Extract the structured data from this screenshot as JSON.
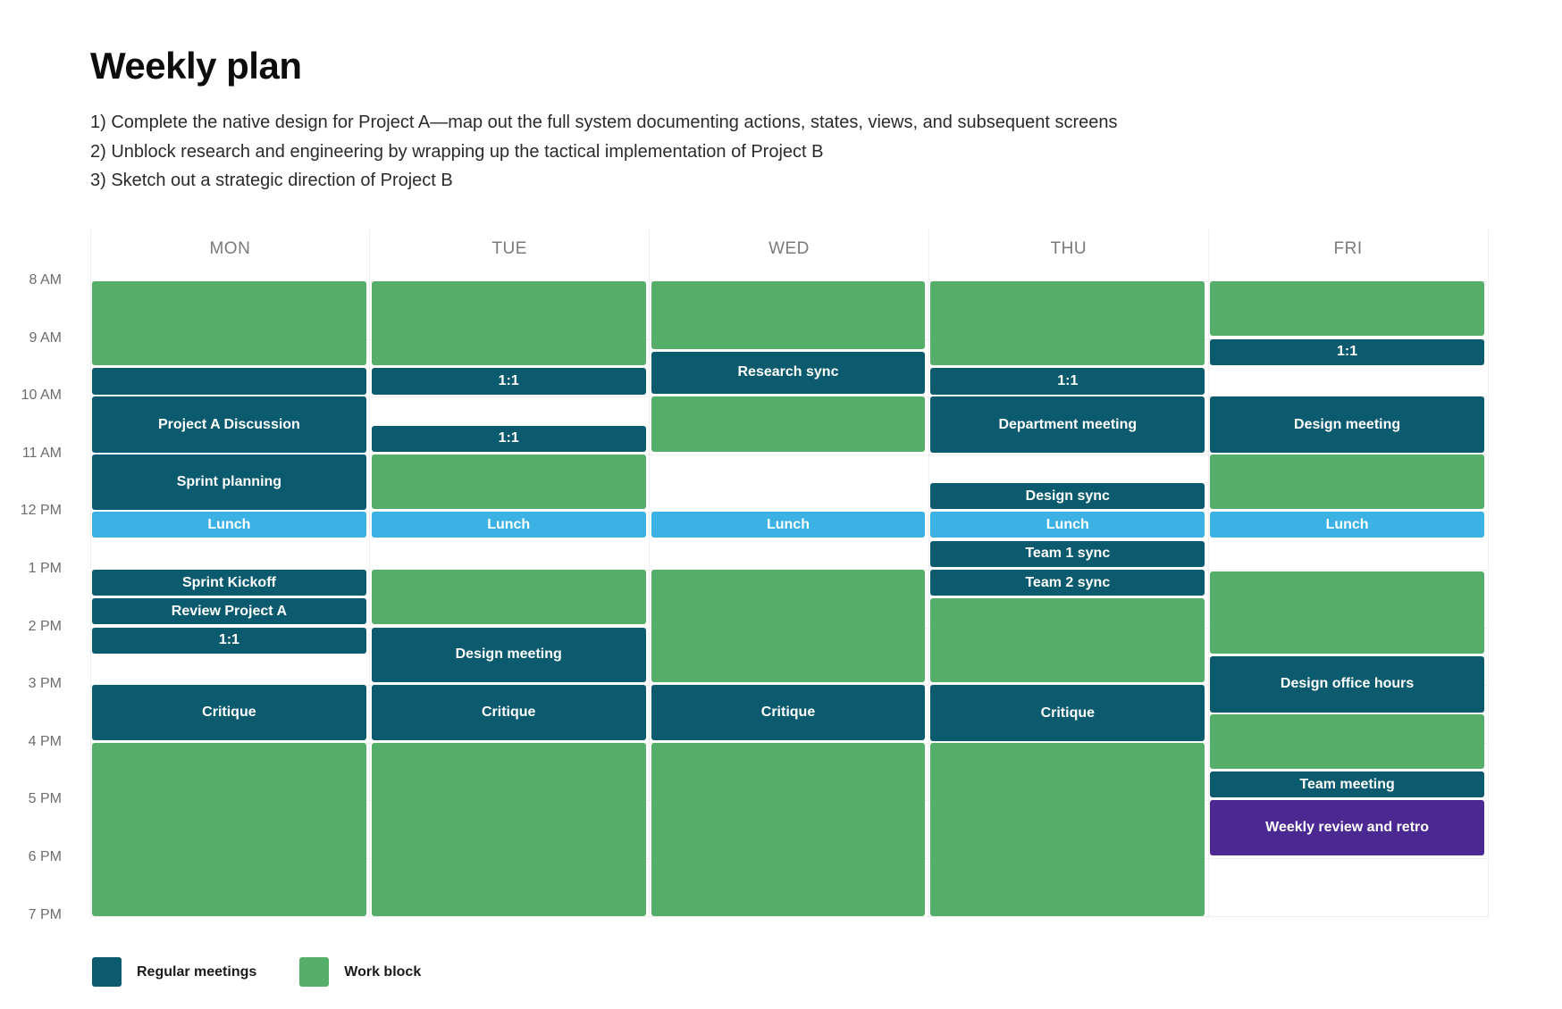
{
  "title": "Weekly plan",
  "goals": [
    "1) Complete the native design for Project A—map out the full system documenting actions, states, views, and subsequent screens",
    "2) Unblock research and engineering by wrapping up the tactical implementation of Project B",
    "3) Sketch out a strategic direction of Project B"
  ],
  "days": [
    "MON",
    "TUE",
    "WED",
    "THU",
    "FRI"
  ],
  "times": [
    "8 AM",
    "9 AM",
    "10 AM",
    "11 AM",
    "12 PM",
    "1 PM",
    "2 PM",
    "3 PM",
    "4 PM",
    "5 PM",
    "6 PM",
    "7 PM"
  ],
  "colors": {
    "meeting": "#0b5a6e",
    "work": "#55ae6a",
    "lunch": "#3cb1e3",
    "retro": "#4b2892"
  },
  "legend": [
    {
      "label": "Regular meetings",
      "type": "meeting"
    },
    {
      "label": "Work block",
      "type": "work"
    }
  ],
  "events": [
    {
      "day": 0,
      "start": 8.0,
      "end": 9.45,
      "label": "",
      "type": "work"
    },
    {
      "day": 0,
      "start": 9.5,
      "end": 9.97,
      "label": "",
      "type": "meeting"
    },
    {
      "day": 0,
      "start": 10.0,
      "end": 10.97,
      "label": "Project A Discussion",
      "type": "meeting"
    },
    {
      "day": 0,
      "start": 11.0,
      "end": 11.97,
      "label": "Sprint planning",
      "type": "meeting"
    },
    {
      "day": 0,
      "start": 12.0,
      "end": 12.45,
      "label": "Lunch",
      "type": "lunch"
    },
    {
      "day": 0,
      "start": 13.0,
      "end": 13.45,
      "label": "Sprint Kickoff",
      "type": "meeting"
    },
    {
      "day": 0,
      "start": 13.5,
      "end": 13.95,
      "label": "Review Project A",
      "type": "meeting"
    },
    {
      "day": 0,
      "start": 14.0,
      "end": 14.45,
      "label": "1:1",
      "type": "meeting"
    },
    {
      "day": 0,
      "start": 15.0,
      "end": 15.95,
      "label": "Critique",
      "type": "meeting"
    },
    {
      "day": 0,
      "start": 16.0,
      "end": 19.0,
      "label": "",
      "type": "work"
    },
    {
      "day": 1,
      "start": 8.0,
      "end": 9.45,
      "label": "",
      "type": "work"
    },
    {
      "day": 1,
      "start": 9.5,
      "end": 9.97,
      "label": "1:1",
      "type": "meeting"
    },
    {
      "day": 1,
      "start": 10.5,
      "end": 10.95,
      "label": "1:1",
      "type": "meeting"
    },
    {
      "day": 1,
      "start": 11.0,
      "end": 11.95,
      "label": "",
      "type": "work"
    },
    {
      "day": 1,
      "start": 12.0,
      "end": 12.45,
      "label": "Lunch",
      "type": "lunch"
    },
    {
      "day": 1,
      "start": 13.0,
      "end": 13.95,
      "label": "",
      "type": "work"
    },
    {
      "day": 1,
      "start": 14.0,
      "end": 14.95,
      "label": "Design meeting",
      "type": "meeting"
    },
    {
      "day": 1,
      "start": 15.0,
      "end": 15.95,
      "label": "Critique",
      "type": "meeting"
    },
    {
      "day": 1,
      "start": 16.0,
      "end": 19.0,
      "label": "",
      "type": "work"
    },
    {
      "day": 2,
      "start": 8.0,
      "end": 9.18,
      "label": "",
      "type": "work"
    },
    {
      "day": 2,
      "start": 9.22,
      "end": 9.95,
      "label": "Research sync",
      "type": "meeting"
    },
    {
      "day": 2,
      "start": 10.0,
      "end": 10.95,
      "label": "",
      "type": "work"
    },
    {
      "day": 2,
      "start": 12.0,
      "end": 12.45,
      "label": "Lunch",
      "type": "lunch"
    },
    {
      "day": 2,
      "start": 13.0,
      "end": 14.95,
      "label": "",
      "type": "work"
    },
    {
      "day": 2,
      "start": 15.0,
      "end": 15.95,
      "label": "Critique",
      "type": "meeting"
    },
    {
      "day": 2,
      "start": 16.0,
      "end": 19.0,
      "label": "",
      "type": "work"
    },
    {
      "day": 3,
      "start": 8.0,
      "end": 9.45,
      "label": "",
      "type": "work"
    },
    {
      "day": 3,
      "start": 9.5,
      "end": 9.97,
      "label": "1:1",
      "type": "meeting"
    },
    {
      "day": 3,
      "start": 10.0,
      "end": 10.97,
      "label": "Department meeting",
      "type": "meeting"
    },
    {
      "day": 3,
      "start": 11.5,
      "end": 11.95,
      "label": "Design sync",
      "type": "meeting"
    },
    {
      "day": 3,
      "start": 12.0,
      "end": 12.45,
      "label": "Lunch",
      "type": "lunch"
    },
    {
      "day": 3,
      "start": 12.5,
      "end": 12.95,
      "label": "Team 1 sync",
      "type": "meeting"
    },
    {
      "day": 3,
      "start": 13.0,
      "end": 13.45,
      "label": "Team 2 sync",
      "type": "meeting"
    },
    {
      "day": 3,
      "start": 13.5,
      "end": 14.95,
      "label": "",
      "type": "work"
    },
    {
      "day": 3,
      "start": 15.0,
      "end": 15.97,
      "label": "Critique",
      "type": "meeting"
    },
    {
      "day": 3,
      "start": 16.0,
      "end": 19.0,
      "label": "",
      "type": "work"
    },
    {
      "day": 4,
      "start": 8.0,
      "end": 8.95,
      "label": "",
      "type": "work"
    },
    {
      "day": 4,
      "start": 9.0,
      "end": 9.45,
      "label": "1:1",
      "type": "meeting"
    },
    {
      "day": 4,
      "start": 10.0,
      "end": 10.97,
      "label": "Design meeting",
      "type": "meeting"
    },
    {
      "day": 4,
      "start": 11.0,
      "end": 11.95,
      "label": "",
      "type": "work"
    },
    {
      "day": 4,
      "start": 12.0,
      "end": 12.45,
      "label": "Lunch",
      "type": "lunch"
    },
    {
      "day": 4,
      "start": 13.03,
      "end": 14.45,
      "label": "",
      "type": "work"
    },
    {
      "day": 4,
      "start": 14.5,
      "end": 15.47,
      "label": "Design office hours",
      "type": "meeting"
    },
    {
      "day": 4,
      "start": 15.5,
      "end": 16.45,
      "label": "",
      "type": "work"
    },
    {
      "day": 4,
      "start": 16.5,
      "end": 16.95,
      "label": "Team meeting",
      "type": "meeting"
    },
    {
      "day": 4,
      "start": 17.0,
      "end": 17.95,
      "label": "Weekly review and retro",
      "type": "retro"
    }
  ]
}
